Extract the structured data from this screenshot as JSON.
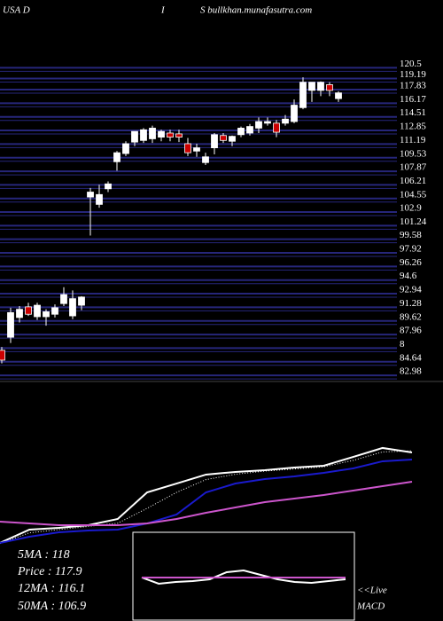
{
  "header": {
    "left": "USA D",
    "middle": "I",
    "right": "S bullkhan.munafasutra.com"
  },
  "chart_data": [
    {
      "type": "candlestick",
      "up_color": "#ffffff",
      "down_color": "#cc0000",
      "grid": true,
      "grid_color": "#26267a",
      "ylim": [
        81.8,
        124
      ],
      "yticks": [
        120.5,
        119.19,
        117.83,
        116.17,
        114.51,
        112.85,
        111.19,
        109.53,
        107.87,
        106.21,
        104.55,
        102.9,
        101.24,
        99.58,
        97.92,
        96.26,
        94.6,
        92.94,
        91.28,
        89.62,
        87.96,
        {
          "value": 86.3,
          "label": "8"
        },
        84.64,
        82.98
      ],
      "open": [
        85.6,
        87.2,
        89.6,
        90.9,
        89.7,
        89.7,
        90.0,
        91.3,
        89.8,
        91.1,
        104.3,
        103.4,
        105.3,
        108.6,
        109.6,
        111.0,
        111.2,
        111.4,
        111.6,
        112.1,
        112.0,
        110.8,
        109.9,
        108.5,
        110.3,
        111.8,
        111.1,
        111.9,
        112.1,
        112.7,
        113.3,
        113.3,
        113.3,
        113.5,
        115.2,
        117.3,
        117.3,
        118.0,
        116.3
      ],
      "high": [
        86.0,
        90.8,
        91.0,
        91.4,
        91.4,
        90.6,
        91.2,
        93.3,
        92.9,
        92.2,
        105.4,
        105.8,
        106.2,
        109.9,
        111.1,
        112.3,
        112.7,
        113.0,
        112.5,
        112.5,
        112.5,
        111.5,
        110.8,
        109.7,
        112.1,
        112.1,
        111.8,
        112.9,
        113.2,
        114.0,
        114.0,
        113.7,
        114.3,
        116.2,
        118.9,
        118.3,
        118.4,
        118.3,
        117.2
      ],
      "low": [
        84.0,
        86.5,
        89.0,
        89.8,
        89.3,
        88.6,
        89.6,
        91.0,
        89.4,
        90.5,
        99.6,
        103.0,
        104.9,
        107.5,
        109.3,
        110.5,
        110.9,
        110.9,
        111.1,
        111.1,
        111.0,
        109.3,
        109.2,
        108.2,
        109.5,
        110.9,
        110.5,
        111.6,
        111.8,
        112.1,
        113.0,
        111.6,
        113.0,
        113.3,
        115.0,
        115.9,
        116.6,
        116.6,
        115.9
      ],
      "close": [
        84.4,
        90.2,
        90.6,
        90.0,
        91.1,
        90.3,
        90.8,
        92.4,
        91.9,
        92.1,
        104.9,
        104.6,
        105.9,
        109.7,
        110.8,
        112.3,
        112.5,
        112.7,
        112.3,
        111.6,
        111.6,
        109.7,
        110.3,
        109.2,
        111.9,
        111.2,
        111.7,
        112.7,
        112.9,
        113.5,
        113.5,
        112.2,
        113.8,
        115.5,
        118.3,
        118.3,
        118.3,
        117.3,
        117.0
      ]
    },
    {
      "type": "line",
      "ylim": [
        0,
        100
      ],
      "series": [
        {
          "name": "Price",
          "color": "#ffffff",
          "style": "solid",
          "values": [
            2.5,
            15,
            16.7,
            19.2,
            25,
            50,
            58.3,
            66.7,
            69.2,
            70.8,
            73.3,
            75,
            83.3,
            91.7,
            87.5
          ]
        },
        {
          "name": "5MA",
          "color": "#ffffff",
          "style": "dotted",
          "values": [
            2,
            12,
            15,
            18,
            21,
            35,
            50,
            62,
            67,
            70,
            72,
            74,
            80,
            88,
            89
          ]
        },
        {
          "name": "12MA",
          "color": "#1a1acc",
          "style": "solid",
          "values": [
            2.5,
            8.3,
            12.5,
            14.2,
            15,
            20.8,
            29.2,
            50,
            58.3,
            62.5,
            65,
            68.3,
            72.5,
            79.2,
            80.8
          ]
        },
        {
          "name": "50MA",
          "color": "#cc55cc",
          "style": "solid",
          "values": [
            22.5,
            20.8,
            19.2,
            19.2,
            19.2,
            20.8,
            25,
            30.8,
            35.8,
            40.8,
            44.2,
            47.5,
            51.7,
            55.8,
            60
          ]
        }
      ]
    },
    {
      "type": "line",
      "ylim": [
        0,
        100
      ],
      "series": [
        {
          "name": "MACD",
          "color": "#ffffff",
          "style": "solid",
          "values": [
            49,
            41.7,
            43.8,
            44.8,
            46.9,
            55.2,
            57.3,
            52.1,
            46.9,
            43.8,
            42.7,
            44.8,
            46.9
          ]
        },
        {
          "name": "Signal",
          "color": "#cc55cc",
          "style": "solid",
          "values": [
            49,
            49,
            49,
            49,
            49,
            49,
            49,
            49,
            49,
            49,
            49,
            49,
            49
          ]
        }
      ]
    }
  ],
  "stats": [
    "5MA : 118",
    "Price : 117.9",
    "12MA : 116.1",
    "50MA : 106.9"
  ],
  "live": "<<Live",
  "macd_label": "MACD"
}
